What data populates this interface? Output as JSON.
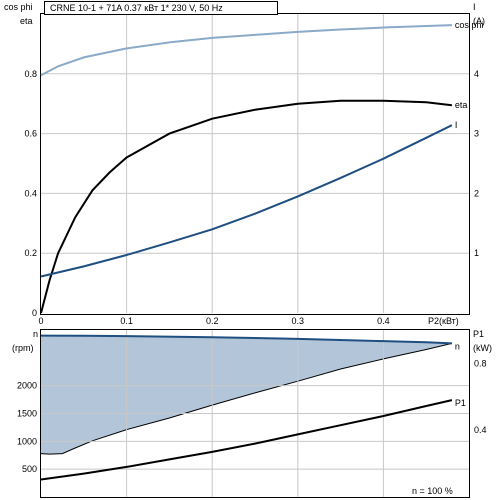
{
  "header": {
    "title": "CRNE 10-1 + 71A    0.37 кВт    1* 230 V, 50 Hz"
  },
  "top_left_axis": {
    "label1": "cos phi",
    "label2": "eta"
  },
  "top_right_axis": {
    "label1": "I",
    "label2": "(A)"
  },
  "bottom_left_axis": {
    "label1": "n",
    "label2": "(rpm)"
  },
  "bottom_right_axis": {
    "label1": "P1",
    "label2": "(kW)"
  },
  "footer": {
    "speed_note": "n   = 100 %"
  },
  "colors": {
    "cosphi": "#8aaac8",
    "eta": "#000000",
    "current": "#1f4e80",
    "speed_fill": "#b3c6d9",
    "speed_line": "#1f4e80",
    "p1": "#000000"
  },
  "chart_data": [
    {
      "type": "line",
      "x": {
        "label": "P2(кВт)",
        "lim": [
          0,
          0.5
        ],
        "ticks": [
          0,
          0.1,
          0.2,
          0.3,
          0.4
        ],
        "tick_labels": [
          "0",
          "0.1",
          "0.2",
          "0.3",
          "0.4"
        ]
      },
      "y_left": {
        "label": "cos phi / eta",
        "lim": [
          0,
          1.0
        ],
        "ticks": [
          0,
          0.2,
          0.4,
          0.6,
          0.8
        ],
        "tick_labels": [
          "0",
          "0.2",
          "0.4",
          "0.6",
          "0.8"
        ]
      },
      "y_right": {
        "label": "I (A)",
        "lim": [
          0,
          5
        ],
        "ticks": [
          1,
          2,
          3,
          4
        ],
        "tick_labels": [
          "1",
          "2",
          "3",
          "4"
        ]
      },
      "grid": true,
      "series": [
        {
          "name": "cos phi",
          "axis": "left",
          "color_key": "cosphi",
          "points": [
            [
              0,
              0.795
            ],
            [
              0.02,
              0.825
            ],
            [
              0.05,
              0.855
            ],
            [
              0.1,
              0.885
            ],
            [
              0.15,
              0.905
            ],
            [
              0.2,
              0.92
            ],
            [
              0.25,
              0.93
            ],
            [
              0.3,
              0.94
            ],
            [
              0.35,
              0.948
            ],
            [
              0.4,
              0.955
            ],
            [
              0.45,
              0.96
            ],
            [
              0.48,
              0.963
            ]
          ]
        },
        {
          "name": "eta",
          "axis": "left",
          "color_key": "eta",
          "points": [
            [
              0,
              0.0
            ],
            [
              0.01,
              0.11
            ],
            [
              0.02,
              0.2
            ],
            [
              0.04,
              0.32
            ],
            [
              0.06,
              0.41
            ],
            [
              0.08,
              0.47
            ],
            [
              0.1,
              0.52
            ],
            [
              0.15,
              0.6
            ],
            [
              0.2,
              0.65
            ],
            [
              0.25,
              0.68
            ],
            [
              0.3,
              0.7
            ],
            [
              0.35,
              0.71
            ],
            [
              0.4,
              0.71
            ],
            [
              0.45,
              0.705
            ],
            [
              0.48,
              0.695
            ]
          ]
        },
        {
          "name": "I",
          "axis": "right",
          "color_key": "current",
          "points": [
            [
              0,
              0.61
            ],
            [
              0.05,
              0.78
            ],
            [
              0.1,
              0.97
            ],
            [
              0.15,
              1.18
            ],
            [
              0.2,
              1.4
            ],
            [
              0.25,
              1.66
            ],
            [
              0.3,
              1.95
            ],
            [
              0.35,
              2.26
            ],
            [
              0.4,
              2.58
            ],
            [
              0.45,
              2.93
            ],
            [
              0.48,
              3.14
            ]
          ]
        }
      ]
    },
    {
      "type": "area",
      "x": {
        "label": "",
        "lim": [
          0,
          0.5
        ]
      },
      "y_left": {
        "label": "n (rpm)",
        "lim": [
          0,
          3000
        ],
        "ticks": [
          500,
          1000,
          1500,
          2000
        ],
        "tick_labels": [
          "500",
          "1000",
          "1500",
          "2000"
        ]
      },
      "y_right": {
        "label": "P1 (kW)",
        "lim": [
          0,
          1.0
        ],
        "ticks": [
          0.4,
          0.8
        ],
        "tick_labels": [
          "0.4",
          "0.8"
        ]
      },
      "grid": true,
      "series": [
        {
          "name": "n",
          "axis": "left",
          "color_key": "speed_line",
          "points": [
            [
              0,
              2900
            ],
            [
              0.05,
              2895
            ],
            [
              0.1,
              2890
            ],
            [
              0.2,
              2870
            ],
            [
              0.3,
              2840
            ],
            [
              0.4,
              2800
            ],
            [
              0.45,
              2780
            ],
            [
              0.48,
              2760
            ]
          ]
        },
        {
          "name": "",
          "axis": "left",
          "color_key": "speed_fill",
          "role": "lower boundary of shaded band",
          "points": [
            [
              0,
              780
            ],
            [
              0.01,
              770
            ],
            [
              0.025,
              780
            ],
            [
              0.04,
              880
            ],
            [
              0.06,
              1010
            ],
            [
              0.1,
              1210
            ],
            [
              0.15,
              1420
            ],
            [
              0.2,
              1650
            ],
            [
              0.25,
              1870
            ],
            [
              0.3,
              2080
            ],
            [
              0.35,
              2300
            ],
            [
              0.4,
              2480
            ],
            [
              0.45,
              2650
            ],
            [
              0.48,
              2760
            ]
          ]
        },
        {
          "name": "P1",
          "axis": "right",
          "color_key": "p1",
          "points": [
            [
              0,
              0.105
            ],
            [
              0.05,
              0.14
            ],
            [
              0.1,
              0.18
            ],
            [
              0.15,
              0.225
            ],
            [
              0.2,
              0.27
            ],
            [
              0.25,
              0.32
            ],
            [
              0.3,
              0.375
            ],
            [
              0.35,
              0.43
            ],
            [
              0.4,
              0.485
            ],
            [
              0.45,
              0.545
            ],
            [
              0.48,
              0.58
            ]
          ]
        }
      ]
    }
  ]
}
